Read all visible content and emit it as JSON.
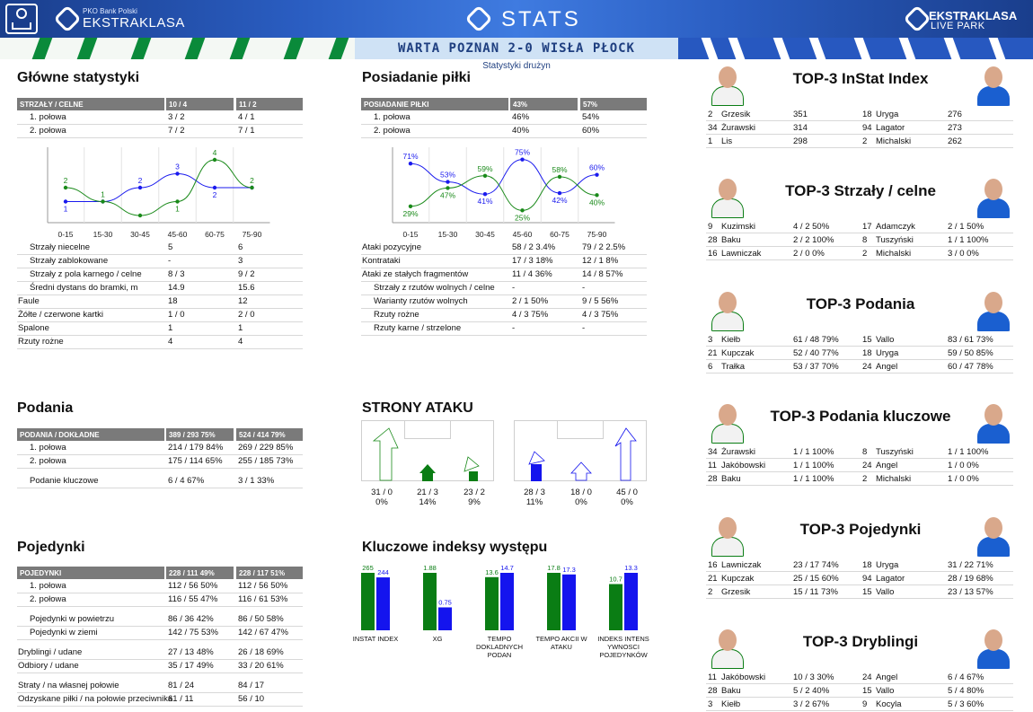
{
  "header": {
    "left_small": "PKO Bank Polski",
    "left_big": "EKSTRAKLASA",
    "center": "STATS",
    "right_big": "EKSTRAKLASA",
    "right_small": "LIVE PARK"
  },
  "match": "WARTA POZNAN 2-0 WISŁA PŁOCK",
  "subtitle": "Statystyki drużyn",
  "main": {
    "title": "Główne statystyki",
    "head": {
      "label": "STRZAŁY / CELNE",
      "home": "10 / 4",
      "away": "11 / 2"
    },
    "halves": [
      {
        "label": "1. połowa",
        "home": "3 / 2",
        "away": "4 / 1"
      },
      {
        "label": "2. połowa",
        "home": "7 / 2",
        "away": "7 / 1"
      }
    ],
    "rows": [
      {
        "label": "Strzały niecelne",
        "home": "5",
        "away": "6",
        "indent": true
      },
      {
        "label": "Strzały zablokowane",
        "home": "-",
        "away": "3",
        "indent": true
      },
      {
        "label": "Strzały z pola karnego / celne",
        "home": "8 / 3",
        "away": "9 / 2",
        "indent": true
      },
      {
        "label": "Średni dystans do bramki, m",
        "home": "14.9",
        "away": "15.6",
        "indent": true
      },
      {
        "label": "Faule",
        "home": "18",
        "away": "12",
        "indent": false
      },
      {
        "label": "Żółte / czerwone kartki",
        "home": "1 / 0",
        "away": "2 / 0",
        "indent": false
      },
      {
        "label": "Spalone",
        "home": "1",
        "away": "1",
        "indent": false
      },
      {
        "label": "Rzuty rożne",
        "home": "4",
        "away": "4",
        "indent": false
      }
    ]
  },
  "possession": {
    "title": "Posiadanie piłki",
    "head": {
      "label": "POSIADANIE PIŁKI",
      "home": "43%",
      "away": "57%"
    },
    "halves": [
      {
        "label": "1. połowa",
        "home": "46%",
        "away": "54%"
      },
      {
        "label": "2. połowa",
        "home": "40%",
        "away": "60%"
      }
    ],
    "rows": [
      {
        "label": "Ataki pozycyjne",
        "home": "58 / 2  3.4%",
        "away": "79 / 2  2.5%",
        "indent": false
      },
      {
        "label": "Kontrataki",
        "home": "17 / 3  18%",
        "away": "12 / 1  8%",
        "indent": false
      },
      {
        "label": "Ataki ze stałych fragmentów",
        "home": "11 / 4  36%",
        "away": "14 / 8  57%",
        "indent": false
      },
      {
        "label": "Strzały z rzutów wolnych / celne",
        "home": "-",
        "away": "-",
        "indent": true
      },
      {
        "label": "Warianty rzutów wolnych",
        "home": "2 / 1    50%",
        "away": "9 / 5    56%",
        "indent": true
      },
      {
        "label": "Rzuty rożne",
        "home": "4 / 3    75%",
        "away": "4 / 3    75%",
        "indent": true
      },
      {
        "label": "Rzuty karne / strzelone",
        "home": "-",
        "away": "-",
        "indent": true
      }
    ]
  },
  "chart_data": [
    {
      "type": "line",
      "categories": [
        "0-15",
        "15-30",
        "30-45",
        "45-60",
        "60-75",
        "75-90"
      ],
      "series": [
        {
          "values": [
            1,
            1,
            2,
            3,
            2,
            2
          ],
          "color": "#1a1aee"
        },
        {
          "values": [
            2,
            1,
            0,
            1,
            4,
            2
          ],
          "color": "#1a8a1a"
        }
      ],
      "labels_blue": [
        "1",
        "",
        "2",
        "3",
        "2",
        ""
      ],
      "labels_green": [
        "2",
        "1",
        "",
        "1",
        "4",
        "2"
      ],
      "ylim": [
        0,
        4
      ]
    },
    {
      "type": "line",
      "categories": [
        "0-15",
        "15-30",
        "30-45",
        "45-60",
        "60-75",
        "75-90"
      ],
      "series": [
        {
          "values": [
            71,
            53,
            41,
            75,
            42,
            60
          ],
          "color": "#1a1aee"
        },
        {
          "values": [
            29,
            47,
            59,
            25,
            58,
            40
          ],
          "color": "#1a8a1a"
        }
      ],
      "labels_blue": [
        "71%",
        "53%",
        "41%",
        "75%",
        "42%",
        "60%"
      ],
      "labels_green": [
        "29%",
        "47%",
        "59%",
        "25%",
        "58%",
        "40%"
      ],
      "ylim": [
        20,
        80
      ]
    },
    {
      "type": "bar",
      "categories": [
        "INSTAT INDEX",
        "XG",
        "TEMPO DOKLADNYCH PODAN",
        "TEMPO AKCII W ATAKU",
        "INDEKS INTENS YWNOSCI POJEDYNKÓW"
      ],
      "series": [
        {
          "name": "",
          "values": [
            265,
            1.88,
            13.6,
            17.8,
            10.7
          ],
          "color": "#0a7d14"
        },
        {
          "name": "",
          "values": [
            244,
            0.75,
            14.7,
            17.3,
            13.3
          ],
          "color": "#1414ee"
        }
      ],
      "labels_green": [
        "265",
        "1.88",
        "13.6",
        "17.8",
        "10.7"
      ],
      "labels_blue": [
        "244",
        "0.75",
        "14.7",
        "17.3",
        "13.3"
      ],
      "max": [
        265,
        1.88,
        14.7,
        17.8,
        13.3
      ]
    }
  ],
  "passes": {
    "title": "Podania",
    "head": {
      "label": "PODANIA / DOKŁADNE",
      "home": "389 / 293 75%",
      "away": "524 / 414 79%"
    },
    "rows": [
      {
        "label": "1. połowa",
        "home": "214 / 179 84%",
        "away": "269 / 229 85%",
        "indent": true
      },
      {
        "label": "2. połowa",
        "home": "175 / 114 65%",
        "away": "255 / 185 73%",
        "indent": true
      },
      {
        "label": "Podanie kluczowe",
        "home": "6 / 4        67%",
        "away": "3 / 1        33%",
        "indent": true
      }
    ]
  },
  "attack": {
    "title": "STRONY ATAKU",
    "home": [
      {
        "v": "31 / 0",
        "p": "0%"
      },
      {
        "v": "21 / 3",
        "p": "14%"
      },
      {
        "v": "23 / 2",
        "p": "9%"
      }
    ],
    "away": [
      {
        "v": "28 / 3",
        "p": "11%"
      },
      {
        "v": "18 / 0",
        "p": "0%"
      },
      {
        "v": "45 / 0",
        "p": "0%"
      }
    ]
  },
  "duels": {
    "title": "Pojedynki",
    "head": {
      "label": "POJEDYNKI",
      "home": "228 / 111 49%",
      "away": "228 / 117 51%"
    },
    "rows": [
      {
        "label": "1. połowa",
        "home": "112 / 56  50%",
        "away": "112 / 56  50%",
        "indent": true
      },
      {
        "label": "2. połowa",
        "home": "116 / 55  47%",
        "away": "116 / 61  53%",
        "indent": true
      },
      {
        "label": "Pojedynki w powietrzu",
        "home": "86 / 36    42%",
        "away": "86 / 50    58%",
        "indent": true
      },
      {
        "label": "Pojedynki w ziemi",
        "home": "142 / 75  53%",
        "away": "142 / 67  47%",
        "indent": true
      },
      {
        "label": "Dryblingi / udane",
        "home": "27 / 13    48%",
        "away": "26 / 18    69%",
        "indent": false
      },
      {
        "label": "Odbiory / udane",
        "home": "35 / 17    49%",
        "away": "33 / 20    61%",
        "indent": false
      },
      {
        "label": "Straty / na własnej połowie",
        "home": "81 / 24",
        "away": "84 / 17",
        "indent": false
      },
      {
        "label": "Odzyskane piłki / na połowie przeciwnika",
        "home": "61 / 11",
        "away": "56 / 10",
        "indent": false
      }
    ]
  },
  "indexes_title": "Kluczowe indeksy występu",
  "top": [
    {
      "title": "TOP-3 InStat Index",
      "left": [
        [
          "2",
          "Grzesik",
          "351"
        ],
        [
          "34",
          "Żurawski",
          "314"
        ],
        [
          "1",
          "Lis",
          "298"
        ]
      ],
      "right": [
        [
          "18",
          "Uryga",
          "276"
        ],
        [
          "94",
          "Lagator",
          "273"
        ],
        [
          "2",
          "Michalski",
          "262"
        ]
      ]
    },
    {
      "title": "TOP-3 Strzały / celne",
      "left": [
        [
          "9",
          "Kuzimski",
          "4 / 2  50%"
        ],
        [
          "28",
          "Baku",
          "2 / 2  100%"
        ],
        [
          "16",
          "Lawniczak",
          "2 / 0  0%"
        ]
      ],
      "right": [
        [
          "17",
          "Adamczyk",
          "2 / 1  50%"
        ],
        [
          "8",
          "Tuszyński",
          "1 / 1  100%"
        ],
        [
          "2",
          "Michalski",
          "3 / 0  0%"
        ]
      ]
    },
    {
      "title": "TOP-3 Podania",
      "left": [
        [
          "3",
          "Kiełb",
          "61 / 48 79%"
        ],
        [
          "21",
          "Kupczak",
          "52 / 40 77%"
        ],
        [
          "6",
          "Trałka",
          "53 / 37 70%"
        ]
      ],
      "right": [
        [
          "15",
          "Vallo",
          "83 / 61 73%"
        ],
        [
          "18",
          "Uryga",
          "59 / 50 85%"
        ],
        [
          "24",
          "Angel",
          "60 / 47 78%"
        ]
      ]
    },
    {
      "title": "TOP-3 Podania kluczowe",
      "left": [
        [
          "34",
          "Żurawski",
          "1 / 1    100%"
        ],
        [
          "11",
          "Jakóbowski",
          "1 / 1    100%"
        ],
        [
          "28",
          "Baku",
          "1 / 1    100%"
        ]
      ],
      "right": [
        [
          "8",
          "Tuszyński",
          "1 / 1  100%"
        ],
        [
          "24",
          "Angel",
          "1 / 0  0%"
        ],
        [
          "2",
          "Michalski",
          "1 / 0  0%"
        ]
      ]
    },
    {
      "title": "TOP-3 Pojedynki",
      "left": [
        [
          "16",
          "Lawniczak",
          "23 / 17 74%"
        ],
        [
          "21",
          "Kupczak",
          "25 / 15 60%"
        ],
        [
          "2",
          "Grzesik",
          "15 / 11 73%"
        ]
      ],
      "right": [
        [
          "18",
          "Uryga",
          "31 / 22 71%"
        ],
        [
          "94",
          "Lagator",
          "28 / 19 68%"
        ],
        [
          "15",
          "Vallo",
          "23 / 13 57%"
        ]
      ]
    },
    {
      "title": "TOP-3 Dryblingi",
      "left": [
        [
          "11",
          "Jakóbowski",
          "10 / 3  30%"
        ],
        [
          "28",
          "Baku",
          "5 / 2    40%"
        ],
        [
          "3",
          "Kiełb",
          "3 / 2    67%"
        ]
      ],
      "right": [
        [
          "24",
          "Angel",
          "6 / 4    67%"
        ],
        [
          "15",
          "Vallo",
          "5 / 4    80%"
        ],
        [
          "9",
          "Kocyla",
          "5 / 3    60%"
        ]
      ]
    }
  ]
}
